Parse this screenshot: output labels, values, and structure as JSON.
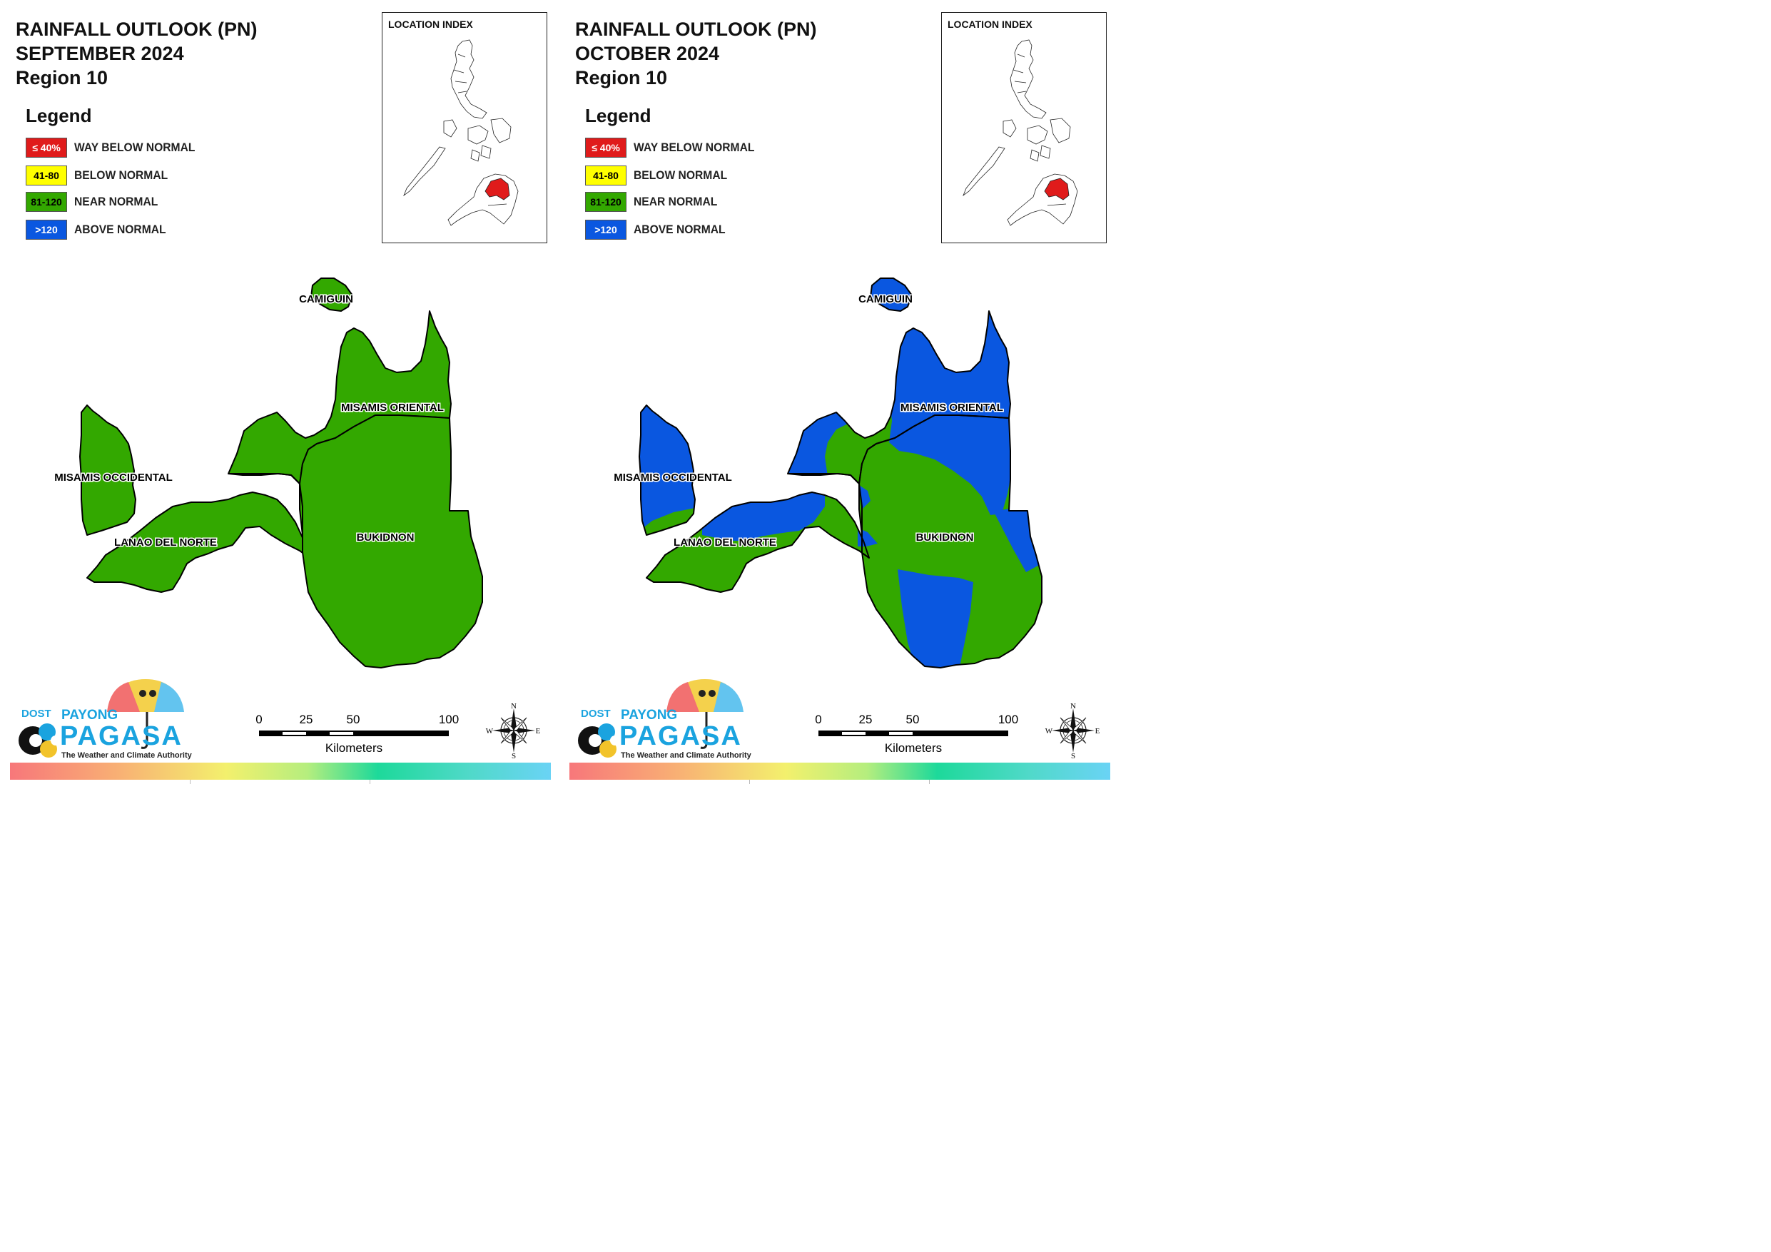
{
  "panels": [
    {
      "title": "RAINFALL OUTLOOK (PN)\nSEPTEMBER 2024\nRegion 10",
      "map_colors": {
        "misamis_occidental": "green",
        "lanao_del_norte": "green",
        "misamis_oriental": "green",
        "bukidnon": "green",
        "camiguin": "green"
      }
    },
    {
      "title": "RAINFALL OUTLOOK (PN)\nOCTOBER 2024\nRegion 10",
      "map_colors": {
        "misamis_occidental": "mostly blue, green at south",
        "lanao_del_norte": "blue north, green south",
        "misamis_oriental": "mostly blue, green southwest",
        "bukidnon": "green with blue patches",
        "camiguin": "blue"
      }
    }
  ],
  "legend": {
    "title": "Legend",
    "items": [
      {
        "swatch": "≤ 40%",
        "label": "WAY BELOW NORMAL",
        "color": "#e01b1b",
        "text_color": "#ffffff"
      },
      {
        "swatch": "41-80",
        "label": "BELOW NORMAL",
        "color": "#ffff00",
        "text_color": "#000000"
      },
      {
        "swatch": "81-120",
        "label": "NEAR NORMAL",
        "color": "#33a800",
        "text_color": "#000000"
      },
      {
        "swatch": ">120",
        "label": "ABOVE NORMAL",
        "color": "#0a57e0",
        "text_color": "#ffffff"
      }
    ]
  },
  "location_index": {
    "title": "LOCATION INDEX",
    "highlight_color": "#e01b1b"
  },
  "provinces": {
    "camiguin": "CAMIGUIN",
    "misamis_oriental": "MISAMIS ORIENTAL",
    "misamis_occidental": "MISAMIS OCCIDENTAL",
    "lanao_del_norte": "LANAO DEL NORTE",
    "bukidnon": "BUKIDNON"
  },
  "colors": {
    "green": "#33a800",
    "blue": "#0a57e0"
  },
  "scale": {
    "ticks": [
      "0",
      "25",
      "50",
      "100"
    ],
    "unit": "Kilometers"
  },
  "compass": {
    "n": "N",
    "e": "E",
    "s": "S",
    "w": "W"
  },
  "logo": {
    "dost": "DOST",
    "payong": "PAYONG",
    "pagasa": "PAGASA",
    "tagline": "The Weather and Climate Authority"
  }
}
